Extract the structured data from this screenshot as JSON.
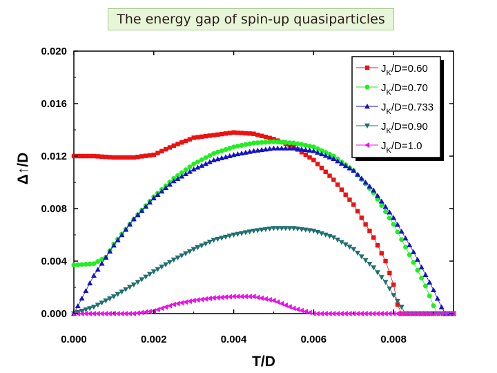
{
  "title": "The energy gap of spin-up quasiparticles",
  "chart_data": {
    "type": "scatter",
    "title": "The energy gap of spin-up quasiparticles",
    "xlabel": "T/D",
    "ylabel": "Δ↑/D",
    "xlim": [
      0.0,
      0.0095
    ],
    "ylim": [
      0.0,
      0.02
    ],
    "xticks": [
      "0.000",
      "0.002",
      "0.004",
      "0.006",
      "0.008"
    ],
    "xtick_values": [
      0.0,
      0.002,
      0.004,
      0.006,
      0.008
    ],
    "yticks": [
      "0.000",
      "0.004",
      "0.008",
      "0.012",
      "0.016",
      "0.020"
    ],
    "ytick_values": [
      0.0,
      0.004,
      0.008,
      0.012,
      0.016,
      0.02
    ],
    "legend_position": "top-right",
    "series": [
      {
        "name": "JK/D=0.60",
        "label_prefix": "J",
        "label_sub": "K",
        "label_suffix": "/D=0.60",
        "color": "#ee1111",
        "marker": "square",
        "points": [
          [
            0.0,
            0.012
          ],
          [
            0.0005,
            0.012
          ],
          [
            0.001,
            0.0119
          ],
          [
            0.0015,
            0.0119
          ],
          [
            0.002,
            0.0121
          ],
          [
            0.0025,
            0.0128
          ],
          [
            0.003,
            0.0134
          ],
          [
            0.0035,
            0.0136
          ],
          [
            0.004,
            0.0138
          ],
          [
            0.0045,
            0.0137
          ],
          [
            0.005,
            0.0133
          ],
          [
            0.0055,
            0.0127
          ],
          [
            0.006,
            0.0117
          ],
          [
            0.0065,
            0.0102
          ],
          [
            0.007,
            0.0083
          ],
          [
            0.0075,
            0.0058
          ],
          [
            0.0078,
            0.004
          ],
          [
            0.008,
            0.0022
          ],
          [
            0.0081,
            0.0007
          ],
          [
            0.0082,
            0.0
          ],
          [
            0.0085,
            0.0
          ],
          [
            0.009,
            0.0
          ],
          [
            0.0095,
            0.0
          ]
        ]
      },
      {
        "name": "JK/D=0.70",
        "label_prefix": "J",
        "label_sub": "K",
        "label_suffix": "/D=0.70",
        "color": "#22ee22",
        "marker": "circle",
        "points": [
          [
            0.0,
            0.0037
          ],
          [
            0.0005,
            0.0038
          ],
          [
            0.0008,
            0.0043
          ],
          [
            0.001,
            0.0053
          ],
          [
            0.0015,
            0.0072
          ],
          [
            0.002,
            0.0089
          ],
          [
            0.0025,
            0.0103
          ],
          [
            0.003,
            0.0114
          ],
          [
            0.0035,
            0.0122
          ],
          [
            0.004,
            0.0127
          ],
          [
            0.0045,
            0.013
          ],
          [
            0.005,
            0.0131
          ],
          [
            0.0055,
            0.013
          ],
          [
            0.006,
            0.0127
          ],
          [
            0.0065,
            0.012
          ],
          [
            0.007,
            0.0109
          ],
          [
            0.0075,
            0.0092
          ],
          [
            0.008,
            0.0068
          ],
          [
            0.0085,
            0.0039
          ],
          [
            0.0088,
            0.0021
          ],
          [
            0.009,
            0.0006
          ],
          [
            0.0091,
            0.0
          ],
          [
            0.0095,
            0.0
          ]
        ]
      },
      {
        "name": "JK/D=0.733",
        "label_prefix": "J",
        "label_sub": "K",
        "label_suffix": "/D=0.733",
        "color": "#1111cc",
        "marker": "triangle-up",
        "points": [
          [
            0.0,
            0.0
          ],
          [
            0.0005,
            0.0029
          ],
          [
            0.001,
            0.0052
          ],
          [
            0.0015,
            0.0072
          ],
          [
            0.002,
            0.0088
          ],
          [
            0.0025,
            0.0101
          ],
          [
            0.003,
            0.011
          ],
          [
            0.0035,
            0.0117
          ],
          [
            0.004,
            0.0121
          ],
          [
            0.0045,
            0.0124
          ],
          [
            0.005,
            0.0126
          ],
          [
            0.0055,
            0.0126
          ],
          [
            0.006,
            0.0124
          ],
          [
            0.0065,
            0.0118
          ],
          [
            0.007,
            0.0109
          ],
          [
            0.0075,
            0.0094
          ],
          [
            0.008,
            0.0073
          ],
          [
            0.0085,
            0.0047
          ],
          [
            0.009,
            0.0018
          ],
          [
            0.0092,
            0.0005
          ],
          [
            0.0093,
            0.0
          ],
          [
            0.0095,
            0.0
          ]
        ]
      },
      {
        "name": "JK/D=0.90",
        "label_prefix": "J",
        "label_sub": "K",
        "label_suffix": "/D=0.90",
        "color": "#1f7070",
        "marker": "triangle-down",
        "points": [
          [
            0.0,
            0.0
          ],
          [
            0.0005,
            0.0005
          ],
          [
            0.001,
            0.0013
          ],
          [
            0.0015,
            0.0022
          ],
          [
            0.002,
            0.0032
          ],
          [
            0.0025,
            0.0041
          ],
          [
            0.003,
            0.0049
          ],
          [
            0.0035,
            0.0056
          ],
          [
            0.004,
            0.006
          ],
          [
            0.0045,
            0.0063
          ],
          [
            0.005,
            0.0065
          ],
          [
            0.0055,
            0.0065
          ],
          [
            0.006,
            0.0063
          ],
          [
            0.0065,
            0.0058
          ],
          [
            0.007,
            0.0049
          ],
          [
            0.0075,
            0.0035
          ],
          [
            0.0078,
            0.0024
          ],
          [
            0.008,
            0.0014
          ],
          [
            0.0082,
            0.0005
          ],
          [
            0.0083,
            0.0
          ],
          [
            0.009,
            0.0
          ],
          [
            0.0095,
            0.0
          ]
        ]
      },
      {
        "name": "JK/D=1.0",
        "label_prefix": "J",
        "label_sub": "K",
        "label_suffix": "/D=1.0",
        "color": "#ee11ee",
        "marker": "triangle-left",
        "points": [
          [
            0.0,
            0.0
          ],
          [
            0.001,
            0.0
          ],
          [
            0.0015,
            0.0
          ],
          [
            0.002,
            0.0002
          ],
          [
            0.0025,
            0.0007
          ],
          [
            0.003,
            0.001
          ],
          [
            0.0035,
            0.0012
          ],
          [
            0.004,
            0.0013
          ],
          [
            0.0045,
            0.0013
          ],
          [
            0.005,
            0.001
          ],
          [
            0.0055,
            0.0004
          ],
          [
            0.006,
            0.0
          ],
          [
            0.007,
            0.0
          ],
          [
            0.008,
            0.0
          ],
          [
            0.009,
            0.0
          ],
          [
            0.0095,
            0.0
          ]
        ]
      }
    ]
  }
}
